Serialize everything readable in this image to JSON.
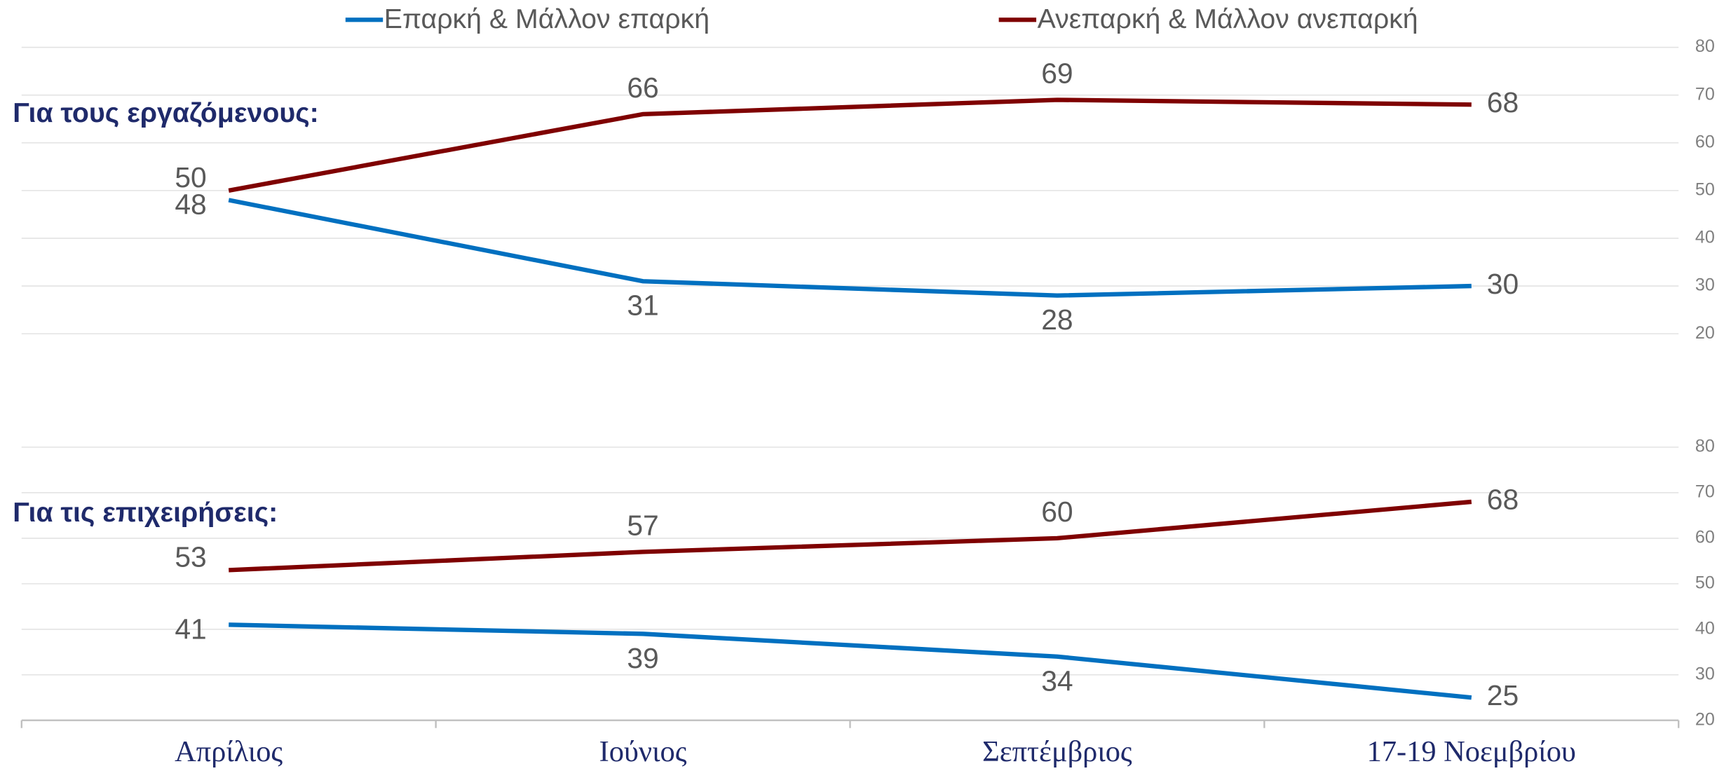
{
  "chart_data": [
    {
      "type": "line",
      "title": "Για τους εργαζόμενους:",
      "series": [
        {
          "name": "Επαρκή & Μάλλον επαρκή",
          "color": "#0070c0",
          "values": [
            48,
            31,
            28,
            30
          ]
        },
        {
          "name": "Ανεπαρκή & Μάλλον ανεπαρκή",
          "color": "#7f0000",
          "values": [
            50,
            66,
            69,
            68
          ]
        }
      ],
      "ylim": [
        20,
        80
      ],
      "yticks": [
        20,
        30,
        40,
        50,
        60,
        70,
        80
      ],
      "grid": true
    },
    {
      "type": "line",
      "title": "Για τις επιχειρήσεις:",
      "categories": [
        "Απρίλιος",
        "Ιούνιος",
        "Σεπτέμβριος",
        "17-19 Νοεμβρίου"
      ],
      "series": [
        {
          "color": "#0070c0",
          "values": [
            41,
            39,
            34,
            25
          ]
        },
        {
          "color": "#7f0000",
          "values": [
            53,
            57,
            60,
            68
          ]
        }
      ],
      "ylim": [
        20,
        80
      ],
      "yticks": [
        20,
        30,
        40,
        50,
        60,
        70,
        80
      ],
      "grid": true
    }
  ]
}
